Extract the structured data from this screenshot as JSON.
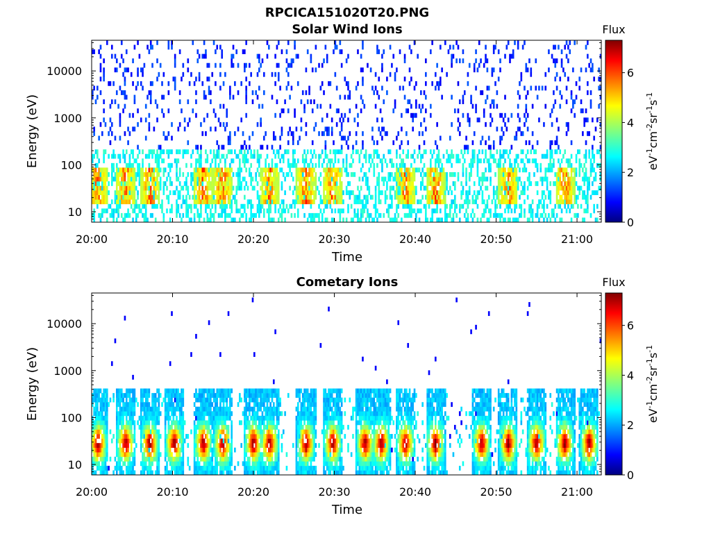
{
  "figure_title": "RPCICA151020T20.PNG",
  "colormap": [
    "#000080",
    "#0000ff",
    "#0080ff",
    "#00ffff",
    "#80ff80",
    "#ffff00",
    "#ff8000",
    "#ff0000",
    "#800000"
  ],
  "chart_data": [
    {
      "type": "heatmap",
      "title": "Solar Wind Ions",
      "xlabel": "Time",
      "ylabel": "Energy (eV)",
      "x_ticks": [
        "20:00",
        "20:10",
        "20:20",
        "20:30",
        "20:40",
        "20:50",
        "21:00"
      ],
      "x_range": [
        "20:00",
        "21:03"
      ],
      "y_ticks": [
        "10",
        "100",
        "1000",
        "10000"
      ],
      "y_range": [
        6,
        45000
      ],
      "y_scale": "log",
      "colorbar": {
        "title": "Flux",
        "unit": "eV⁻¹cm⁻²sr⁻¹s⁻¹",
        "ticks": [
          "0",
          "2",
          "4",
          "6"
        ],
        "range": [
          0,
          7.3
        ]
      },
      "burst_times_min": [
        0.8,
        4.2,
        7.2,
        13.8,
        16.2,
        22.0,
        26.5,
        29.8,
        38.8,
        42.5,
        51.5,
        58.5
      ],
      "description_values": "sparse background counts at flux ~1 across 10 eV to 20000 eV; bursts reach flux ~5 at 20-60 eV"
    },
    {
      "type": "heatmap",
      "title": "Cometary Ions",
      "xlabel": "Time",
      "ylabel": "Energy (eV)",
      "x_ticks": [
        "20:00",
        "20:10",
        "20:20",
        "20:30",
        "20:40",
        "20:50",
        "21:00"
      ],
      "x_range": [
        "20:00",
        "21:03"
      ],
      "y_ticks": [
        "10",
        "100",
        "1000",
        "10000"
      ],
      "y_range": [
        6,
        45000
      ],
      "y_scale": "log",
      "colorbar": {
        "title": "Flux",
        "unit": "eV⁻¹cm⁻²sr⁻¹s⁻¹",
        "ticks": [
          "0",
          "2",
          "4",
          "6"
        ],
        "range": [
          0,
          7.3
        ]
      },
      "burst_times_min": [
        0.8,
        4.2,
        7.2,
        10.2,
        13.8,
        16.2,
        20.0,
        22.0,
        26.5,
        29.8,
        33.8,
        35.8,
        38.8,
        42.5,
        48.2,
        51.5,
        55.0,
        58.5,
        61.5
      ],
      "description_values": "repeated bursts from 6 eV to ~300 eV peaking at flux ~6.5-7 near 20-40 eV"
    }
  ]
}
